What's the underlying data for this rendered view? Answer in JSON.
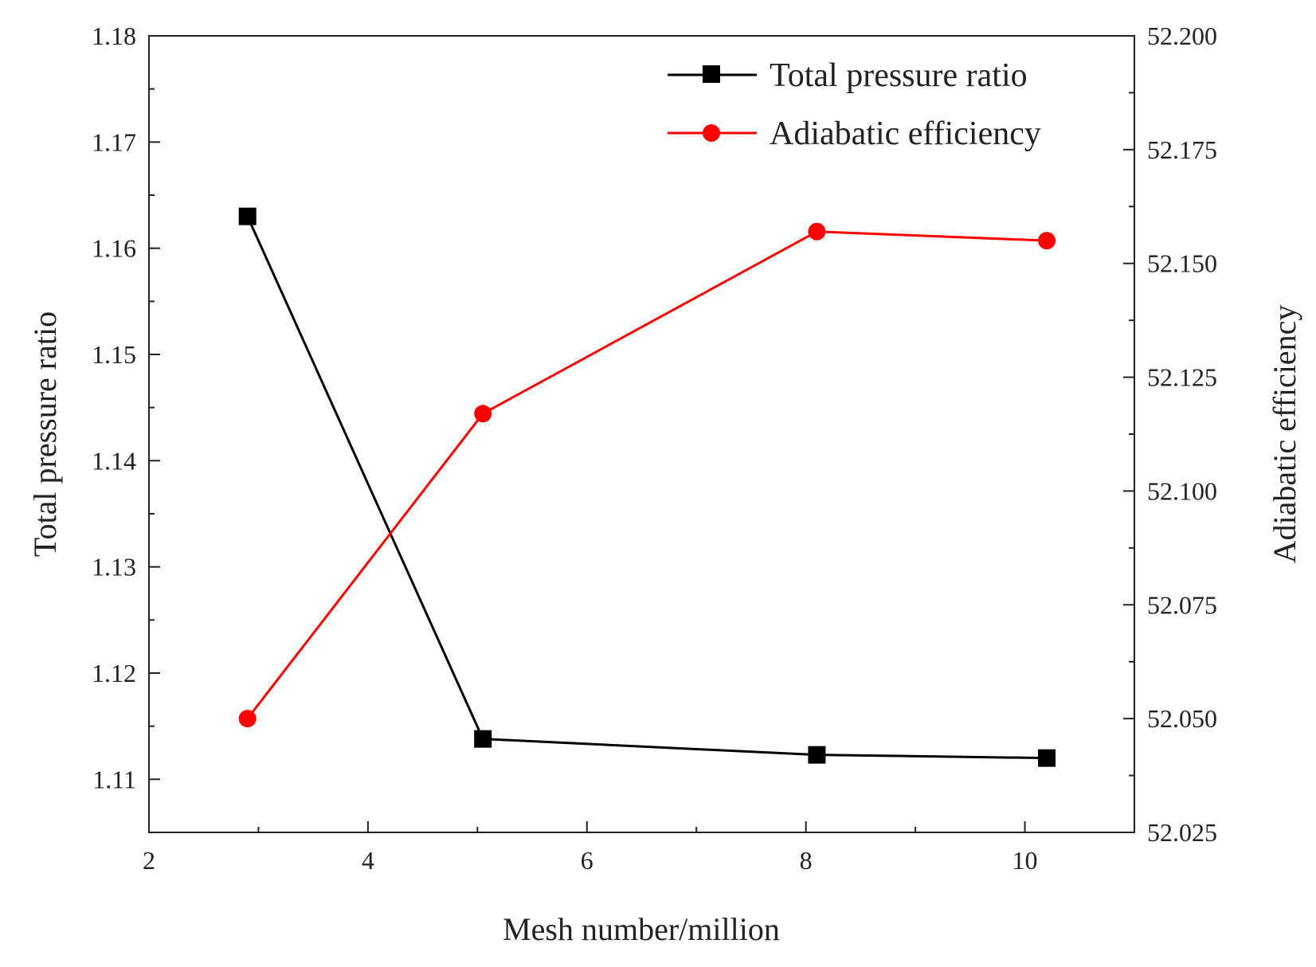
{
  "chart_data": {
    "type": "line",
    "title": "",
    "xlabel": "Mesh number/million",
    "ylabel": "Total pressure ratio",
    "y2label": "Adiabatic efficiency",
    "xlim": [
      2,
      11
    ],
    "ylim": [
      1.105,
      1.18
    ],
    "y2lim": [
      52.025,
      52.2
    ],
    "x_ticks": [
      "2",
      "4",
      "6",
      "8",
      "10"
    ],
    "y_ticks": [
      "1.11",
      "1.12",
      "1.13",
      "1.14",
      "1.15",
      "1.16",
      "1.17",
      "1.18"
    ],
    "y2_ticks": [
      "52.025",
      "52.050",
      "52.075",
      "52.100",
      "52.125",
      "52.150",
      "52.175",
      "52.200"
    ],
    "legend_position": "top-right",
    "grid": false,
    "series": [
      {
        "name": "Total pressure ratio",
        "axis": "left",
        "color": "#000000",
        "marker": "square",
        "x": [
          2.9,
          5.05,
          8.1,
          10.2
        ],
        "values": [
          1.163,
          1.1138,
          1.1123,
          1.112
        ]
      },
      {
        "name": "Adiabatic efficiency",
        "axis": "right",
        "color": "#ff0000",
        "marker": "circle",
        "x": [
          2.9,
          5.05,
          8.1,
          10.2
        ],
        "values": [
          52.05,
          52.117,
          52.157,
          52.155
        ]
      }
    ]
  }
}
